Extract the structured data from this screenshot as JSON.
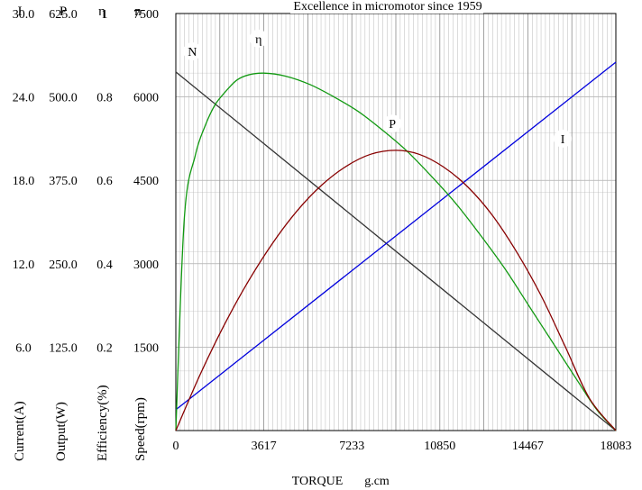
{
  "chart_data": {
    "type": "line",
    "title": "Excellence in micromotor since 1959",
    "xlabel": "TORQUE",
    "xunit": "g.cm",
    "xlim": [
      0,
      18083
    ],
    "x_ticks": [
      "0",
      "3617",
      "7233",
      "10850",
      "14467",
      "18083"
    ],
    "grid": true,
    "axes": [
      {
        "key": "I",
        "header": "I",
        "label": "Current(A)",
        "max": 30,
        "ticks": [
          "30.0",
          "24.0",
          "18.0",
          "12.0",
          "6.0"
        ]
      },
      {
        "key": "P",
        "header": "P",
        "label": "Output(W)",
        "max": 625,
        "ticks": [
          "625.0",
          "500.0",
          "375.0",
          "250.0",
          "125.0"
        ]
      },
      {
        "key": "eta",
        "header": "η",
        "label": "Efficiency(%)",
        "max": 1,
        "ticks": [
          "1",
          "0.8",
          "0.6",
          "0.4",
          "0.2"
        ]
      },
      {
        "key": "n",
        "header": "n",
        "label": "Speed(rpm)",
        "max": 7500,
        "ticks": [
          "7500",
          "6000",
          "4500",
          "3000",
          "1500"
        ]
      }
    ],
    "y_tick_fractions": [
      1.0,
      0.8,
      0.6,
      0.4,
      0.2
    ],
    "series": [
      {
        "name": "N",
        "axis": "n",
        "color": "#333333",
        "x": [
          0,
          18083
        ],
        "values": [
          6450,
          0
        ]
      },
      {
        "name": "I",
        "axis": "I",
        "color": "#0000dd",
        "x": [
          0,
          18083
        ],
        "values": [
          1.5,
          26.5
        ]
      },
      {
        "name": "η",
        "axis": "eta",
        "color": "#119911",
        "x": [
          0,
          350,
          800,
          1200,
          1600,
          2000,
          2500,
          3000,
          3617,
          4500,
          5500,
          6500,
          7500,
          8500,
          9500,
          10500,
          11500,
          12500,
          13500,
          14500,
          15500,
          16500,
          17300,
          18083
        ],
        "values": [
          0,
          0.51,
          0.66,
          0.73,
          0.78,
          0.81,
          0.84,
          0.853,
          0.857,
          0.85,
          0.83,
          0.8,
          0.765,
          0.72,
          0.67,
          0.61,
          0.545,
          0.47,
          0.39,
          0.3,
          0.21,
          0.12,
          0.05,
          0
        ]
      },
      {
        "name": "P",
        "axis": "P",
        "color": "#880000",
        "x": [
          0,
          1000,
          2000,
          3000,
          4000,
          5000,
          6000,
          7000,
          8000,
          9041,
          10000,
          11000,
          12000,
          13000,
          14000,
          15000,
          16000,
          17000,
          18083
        ],
        "values": [
          0,
          84,
          159,
          225,
          282,
          330,
          368,
          396,
          414,
          420,
          414,
          395,
          365,
          323,
          268,
          203,
          126,
          48,
          0
        ]
      }
    ],
    "curve_labels": [
      {
        "series": "N",
        "text": "N",
        "x": 680,
        "axis": "n",
        "value": 6820
      },
      {
        "series": "η",
        "text": "η",
        "x": 3400,
        "axis": "eta",
        "value": 0.94
      },
      {
        "series": "P",
        "text": "P",
        "x": 8900,
        "axis": "P",
        "value": 460
      },
      {
        "series": "I",
        "text": "I",
        "x": 15900,
        "axis": "I",
        "value": 21.0
      }
    ]
  }
}
